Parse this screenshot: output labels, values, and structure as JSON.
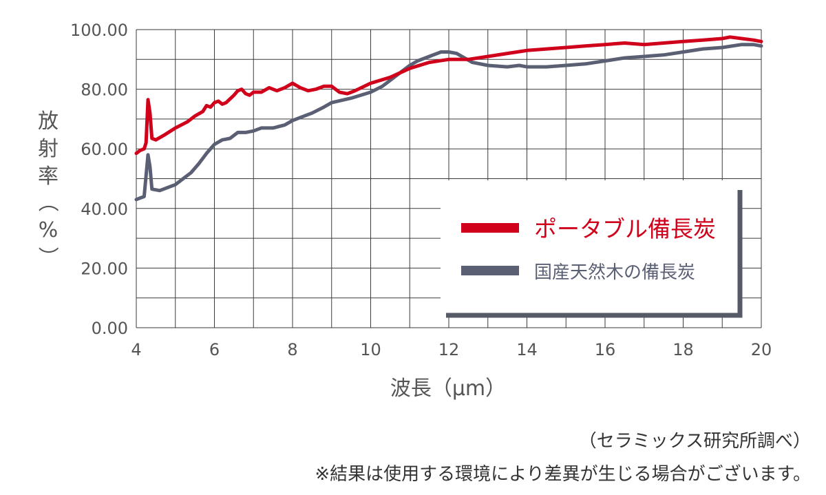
{
  "chart_data": {
    "type": "line",
    "title": "",
    "xlabel": "波長（µm）",
    "ylabel_chars": [
      "放",
      "射",
      "率",
      "（",
      "%",
      "）"
    ],
    "xlim": [
      4,
      20
    ],
    "ylim": [
      0,
      100
    ],
    "xticks": [
      "4",
      "6",
      "8",
      "10",
      "12",
      "14",
      "16",
      "18",
      "20"
    ],
    "yticks": [
      "0.00",
      "20.00",
      "40.00",
      "60.00",
      "80.00",
      "100.00"
    ],
    "grid": true,
    "legend_position": "bottom-right",
    "series": [
      {
        "name": "ポータブル備長炭",
        "color": "#d0021b",
        "points": [
          [
            4.0,
            58.5
          ],
          [
            4.1,
            59.5
          ],
          [
            4.2,
            60
          ],
          [
            4.25,
            62
          ],
          [
            4.3,
            76.5
          ],
          [
            4.35,
            72
          ],
          [
            4.4,
            63.5
          ],
          [
            4.5,
            63
          ],
          [
            4.7,
            64.5
          ],
          [
            5.0,
            67
          ],
          [
            5.3,
            69
          ],
          [
            5.5,
            71
          ],
          [
            5.7,
            72.5
          ],
          [
            5.8,
            74.5
          ],
          [
            5.9,
            74
          ],
          [
            6.0,
            75.5
          ],
          [
            6.1,
            76
          ],
          [
            6.2,
            75
          ],
          [
            6.3,
            75.5
          ],
          [
            6.5,
            78
          ],
          [
            6.6,
            79.5
          ],
          [
            6.7,
            80
          ],
          [
            6.8,
            78.5
          ],
          [
            6.9,
            78
          ],
          [
            7.0,
            79
          ],
          [
            7.2,
            79
          ],
          [
            7.4,
            80.5
          ],
          [
            7.6,
            79.5
          ],
          [
            7.8,
            80.5
          ],
          [
            8.0,
            82
          ],
          [
            8.2,
            80.5
          ],
          [
            8.4,
            79.5
          ],
          [
            8.6,
            80
          ],
          [
            8.8,
            81
          ],
          [
            9.0,
            81
          ],
          [
            9.2,
            79
          ],
          [
            9.4,
            78.5
          ],
          [
            9.6,
            79.5
          ],
          [
            10.0,
            82
          ],
          [
            10.5,
            84
          ],
          [
            11.0,
            87
          ],
          [
            11.5,
            89
          ],
          [
            12.0,
            90
          ],
          [
            12.5,
            90
          ],
          [
            13.0,
            91
          ],
          [
            13.5,
            92
          ],
          [
            14.0,
            93
          ],
          [
            14.5,
            93.5
          ],
          [
            15.0,
            94
          ],
          [
            15.5,
            94.5
          ],
          [
            16.0,
            95
          ],
          [
            16.5,
            95.5
          ],
          [
            17.0,
            95
          ],
          [
            17.5,
            95.5
          ],
          [
            18.0,
            96
          ],
          [
            18.5,
            96.5
          ],
          [
            19.0,
            97
          ],
          [
            19.2,
            97.5
          ],
          [
            19.5,
            97
          ],
          [
            19.8,
            96.5
          ],
          [
            20.0,
            96
          ]
        ]
      },
      {
        "name": "国産天然木の備長炭",
        "color": "#5a5f73",
        "points": [
          [
            4.0,
            43
          ],
          [
            4.1,
            43.5
          ],
          [
            4.2,
            44
          ],
          [
            4.25,
            51
          ],
          [
            4.3,
            58
          ],
          [
            4.35,
            54
          ],
          [
            4.4,
            46.5
          ],
          [
            4.6,
            46
          ],
          [
            4.9,
            47.5
          ],
          [
            5.0,
            48
          ],
          [
            5.2,
            50
          ],
          [
            5.4,
            52
          ],
          [
            5.6,
            55
          ],
          [
            5.8,
            58.5
          ],
          [
            6.0,
            61.5
          ],
          [
            6.2,
            63
          ],
          [
            6.4,
            63.5
          ],
          [
            6.6,
            65.5
          ],
          [
            6.8,
            65.5
          ],
          [
            7.0,
            66
          ],
          [
            7.2,
            67
          ],
          [
            7.5,
            67
          ],
          [
            7.8,
            68
          ],
          [
            8.0,
            69.5
          ],
          [
            8.2,
            70.5
          ],
          [
            8.5,
            72
          ],
          [
            8.8,
            74
          ],
          [
            9.0,
            75.5
          ],
          [
            9.5,
            77
          ],
          [
            10.0,
            79
          ],
          [
            10.3,
            81
          ],
          [
            10.5,
            83
          ],
          [
            10.8,
            86
          ],
          [
            11.0,
            88
          ],
          [
            11.2,
            89.5
          ],
          [
            11.5,
            91
          ],
          [
            11.8,
            92.5
          ],
          [
            12.0,
            92.5
          ],
          [
            12.2,
            92
          ],
          [
            12.4,
            90.5
          ],
          [
            12.6,
            89
          ],
          [
            13.0,
            88
          ],
          [
            13.5,
            87.5
          ],
          [
            13.8,
            88
          ],
          [
            14.0,
            87.5
          ],
          [
            14.5,
            87.5
          ],
          [
            15.0,
            88
          ],
          [
            15.5,
            88.5
          ],
          [
            16.0,
            89.5
          ],
          [
            16.5,
            90.5
          ],
          [
            17.0,
            91
          ],
          [
            17.5,
            91.5
          ],
          [
            18.0,
            92.5
          ],
          [
            18.5,
            93.5
          ],
          [
            19.0,
            94
          ],
          [
            19.5,
            95
          ],
          [
            19.8,
            95
          ],
          [
            20.0,
            94.5
          ]
        ]
      }
    ]
  },
  "notes": {
    "source": "（セラミックス研究所調べ）",
    "disclaimer": "※結果は使用する環境により差異が生じる場合がございます。"
  }
}
